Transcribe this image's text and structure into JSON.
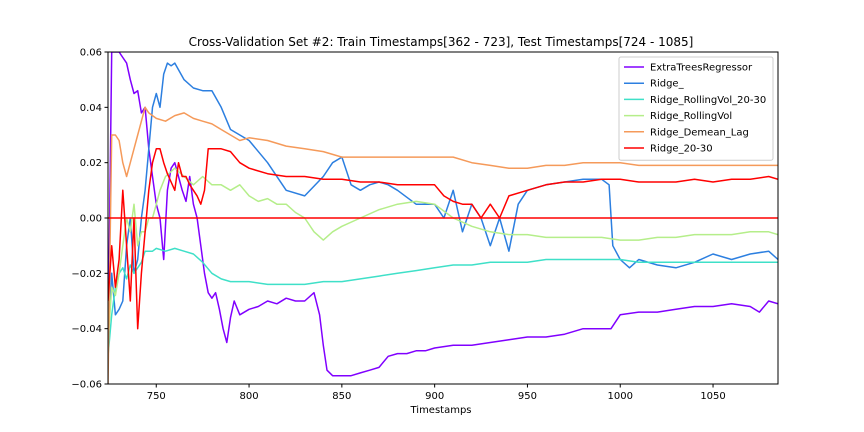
{
  "chart_data": {
    "type": "line",
    "title": "Cross-Validation Set #2: Train Timestamps[362 - 723], Test Timestamps[724 - 1085]",
    "xlabel": "Timestamps",
    "ylabel": "",
    "xlim": [
      724,
      1085
    ],
    "ylim": [
      -0.06,
      0.06
    ],
    "xticks": [
      750,
      800,
      850,
      900,
      950,
      1000,
      1050
    ],
    "yticks": [
      -0.06,
      -0.04,
      -0.02,
      0.0,
      0.02,
      0.04,
      0.06
    ],
    "ytick_labels": [
      "−0.06",
      "−0.04",
      "−0.02",
      "0.00",
      "0.02",
      "0.04",
      "0.06"
    ],
    "grid": false,
    "legend_position": "top-right",
    "hline": {
      "y": 0.0,
      "color": "#ff0000"
    },
    "series": [
      {
        "name": "ExtraTreesRegressor",
        "color": "#8000ff",
        "x": [
          724,
          726,
          728,
          730,
          732,
          734,
          736,
          738,
          740,
          742,
          744,
          746,
          748,
          750,
          752,
          754,
          756,
          758,
          760,
          762,
          764,
          766,
          768,
          770,
          772,
          774,
          776,
          778,
          780,
          782,
          784,
          786,
          788,
          790,
          792,
          795,
          800,
          805,
          810,
          815,
          820,
          825,
          830,
          835,
          838,
          840,
          842,
          845,
          850,
          855,
          860,
          865,
          870,
          875,
          880,
          885,
          890,
          895,
          900,
          910,
          920,
          930,
          940,
          950,
          960,
          970,
          980,
          990,
          995,
          1000,
          1010,
          1020,
          1030,
          1040,
          1050,
          1060,
          1070,
          1075,
          1080,
          1085
        ],
        "y": [
          -0.05,
          0.06,
          0.06,
          0.06,
          0.058,
          0.056,
          0.05,
          0.045,
          0.046,
          0.038,
          0.04,
          0.025,
          0.015,
          0.005,
          0.0,
          -0.015,
          0.01,
          0.018,
          0.02,
          0.015,
          0.01,
          0.006,
          0.015,
          0.005,
          0.0,
          -0.01,
          -0.02,
          -0.027,
          -0.029,
          -0.027,
          -0.033,
          -0.04,
          -0.045,
          -0.036,
          -0.03,
          -0.035,
          -0.033,
          -0.032,
          -0.03,
          -0.031,
          -0.029,
          -0.03,
          -0.03,
          -0.027,
          -0.035,
          -0.046,
          -0.055,
          -0.057,
          -0.057,
          -0.057,
          -0.056,
          -0.055,
          -0.054,
          -0.05,
          -0.049,
          -0.049,
          -0.048,
          -0.048,
          -0.047,
          -0.046,
          -0.046,
          -0.045,
          -0.044,
          -0.043,
          -0.043,
          -0.042,
          -0.04,
          -0.04,
          -0.04,
          -0.035,
          -0.034,
          -0.034,
          -0.033,
          -0.032,
          -0.032,
          -0.031,
          -0.032,
          -0.034,
          -0.03,
          -0.031
        ]
      },
      {
        "name": "Ridge_",
        "color": "#2c7fe0",
        "x": [
          724,
          726,
          728,
          730,
          732,
          734,
          736,
          738,
          740,
          742,
          744,
          746,
          748,
          750,
          752,
          754,
          756,
          758,
          760,
          765,
          770,
          775,
          780,
          785,
          790,
          795,
          800,
          810,
          820,
          830,
          840,
          845,
          850,
          855,
          860,
          865,
          870,
          875,
          880,
          890,
          900,
          905,
          910,
          915,
          920,
          925,
          930,
          935,
          940,
          945,
          950,
          960,
          970,
          980,
          990,
          994,
          996,
          1000,
          1005,
          1010,
          1020,
          1030,
          1040,
          1050,
          1060,
          1070,
          1080,
          1085
        ],
        "y": [
          -0.045,
          -0.02,
          -0.035,
          -0.033,
          -0.03,
          -0.01,
          0.0,
          -0.02,
          -0.015,
          0.0,
          0.01,
          0.025,
          0.04,
          0.045,
          0.04,
          0.052,
          0.056,
          0.055,
          0.056,
          0.05,
          0.047,
          0.046,
          0.046,
          0.04,
          0.032,
          0.03,
          0.028,
          0.02,
          0.01,
          0.008,
          0.015,
          0.02,
          0.022,
          0.012,
          0.01,
          0.012,
          0.013,
          0.012,
          0.01,
          0.005,
          0.005,
          0.0,
          0.01,
          -0.005,
          0.005,
          0.0,
          -0.01,
          0.0,
          -0.012,
          0.005,
          0.01,
          0.012,
          0.013,
          0.014,
          0.014,
          0.012,
          -0.01,
          -0.015,
          -0.018,
          -0.015,
          -0.017,
          -0.018,
          -0.016,
          -0.013,
          -0.015,
          -0.013,
          -0.012,
          -0.015
        ]
      },
      {
        "name": "Ridge_RollingVol_20-30",
        "color": "#3fe0c8",
        "x": [
          724,
          726,
          728,
          730,
          732,
          734,
          736,
          738,
          740,
          742,
          744,
          746,
          748,
          750,
          755,
          760,
          765,
          770,
          775,
          780,
          785,
          790,
          800,
          810,
          820,
          830,
          840,
          850,
          860,
          870,
          880,
          890,
          900,
          910,
          920,
          930,
          940,
          950,
          960,
          970,
          980,
          990,
          1000,
          1010,
          1020,
          1030,
          1040,
          1050,
          1060,
          1070,
          1080,
          1085
        ],
        "y": [
          -0.05,
          -0.035,
          -0.025,
          -0.02,
          -0.018,
          -0.022,
          -0.017,
          -0.02,
          -0.018,
          -0.016,
          -0.012,
          -0.012,
          -0.012,
          -0.011,
          -0.012,
          -0.011,
          -0.012,
          -0.013,
          -0.016,
          -0.02,
          -0.022,
          -0.023,
          -0.023,
          -0.024,
          -0.024,
          -0.024,
          -0.023,
          -0.023,
          -0.022,
          -0.021,
          -0.02,
          -0.019,
          -0.018,
          -0.017,
          -0.017,
          -0.016,
          -0.016,
          -0.016,
          -0.015,
          -0.015,
          -0.015,
          -0.015,
          -0.015,
          -0.016,
          -0.016,
          -0.016,
          -0.016,
          -0.016,
          -0.016,
          -0.016,
          -0.016,
          -0.016
        ]
      },
      {
        "name": "Ridge_RollingVol",
        "color": "#b5ee8a",
        "x": [
          724,
          726,
          728,
          730,
          732,
          734,
          736,
          738,
          740,
          742,
          744,
          746,
          748,
          750,
          752,
          755,
          760,
          765,
          770,
          775,
          780,
          785,
          790,
          795,
          800,
          805,
          810,
          815,
          820,
          825,
          830,
          835,
          840,
          845,
          850,
          860,
          870,
          880,
          890,
          900,
          910,
          920,
          930,
          940,
          950,
          960,
          970,
          980,
          990,
          1000,
          1010,
          1020,
          1030,
          1040,
          1050,
          1060,
          1070,
          1080,
          1085
        ],
        "y": [
          -0.045,
          -0.025,
          -0.028,
          -0.02,
          -0.01,
          0.0,
          -0.005,
          0.005,
          -0.01,
          -0.005,
          -0.005,
          0.0,
          0.0,
          0.005,
          0.01,
          0.015,
          0.018,
          0.015,
          0.012,
          0.015,
          0.012,
          0.012,
          0.01,
          0.012,
          0.008,
          0.006,
          0.007,
          0.005,
          0.005,
          0.002,
          0.0,
          -0.005,
          -0.008,
          -0.005,
          -0.003,
          0.0,
          0.003,
          0.005,
          0.006,
          0.005,
          0.0,
          -0.003,
          -0.005,
          -0.006,
          -0.006,
          -0.007,
          -0.007,
          -0.007,
          -0.007,
          -0.008,
          -0.008,
          -0.007,
          -0.007,
          -0.006,
          -0.006,
          -0.006,
          -0.005,
          -0.005,
          -0.006
        ]
      },
      {
        "name": "Ridge_Demean_Lag",
        "color": "#f59a5a",
        "x": [
          724,
          726,
          728,
          730,
          732,
          734,
          736,
          738,
          740,
          742,
          744,
          746,
          748,
          750,
          755,
          760,
          765,
          770,
          775,
          780,
          785,
          790,
          795,
          800,
          810,
          820,
          830,
          840,
          850,
          860,
          870,
          880,
          890,
          900,
          910,
          920,
          930,
          940,
          950,
          960,
          970,
          980,
          990,
          1000,
          1010,
          1020,
          1030,
          1040,
          1050,
          1060,
          1070,
          1080,
          1085
        ],
        "y": [
          -0.06,
          0.03,
          0.03,
          0.028,
          0.02,
          0.015,
          0.02,
          0.025,
          0.03,
          0.035,
          0.04,
          0.038,
          0.037,
          0.036,
          0.035,
          0.037,
          0.038,
          0.036,
          0.035,
          0.034,
          0.032,
          0.03,
          0.028,
          0.029,
          0.028,
          0.026,
          0.025,
          0.024,
          0.022,
          0.022,
          0.022,
          0.022,
          0.022,
          0.022,
          0.022,
          0.02,
          0.019,
          0.018,
          0.018,
          0.019,
          0.019,
          0.02,
          0.02,
          0.02,
          0.019,
          0.019,
          0.019,
          0.019,
          0.019,
          0.019,
          0.019,
          0.019,
          0.019
        ]
      },
      {
        "name": "Ridge_20-30",
        "color": "#ff0000",
        "x": [
          724,
          726,
          728,
          730,
          732,
          734,
          736,
          738,
          740,
          742,
          744,
          746,
          748,
          750,
          752,
          754,
          756,
          758,
          760,
          762,
          764,
          766,
          768,
          770,
          772,
          774,
          776,
          778,
          780,
          785,
          790,
          795,
          800,
          810,
          820,
          830,
          840,
          850,
          860,
          870,
          880,
          890,
          900,
          905,
          910,
          915,
          920,
          925,
          930,
          935,
          940,
          950,
          960,
          970,
          980,
          990,
          1000,
          1010,
          1020,
          1030,
          1040,
          1050,
          1060,
          1070,
          1080,
          1085
        ],
        "y": [
          -0.03,
          -0.01,
          -0.025,
          -0.015,
          0.01,
          -0.01,
          -0.03,
          0.0,
          -0.04,
          -0.02,
          -0.005,
          0.01,
          0.02,
          0.025,
          0.025,
          0.02,
          0.016,
          0.013,
          0.01,
          0.02,
          0.015,
          0.015,
          0.012,
          0.01,
          0.008,
          0.005,
          0.01,
          0.025,
          0.025,
          0.025,
          0.024,
          0.02,
          0.018,
          0.016,
          0.015,
          0.015,
          0.014,
          0.014,
          0.013,
          0.013,
          0.012,
          0.012,
          0.012,
          0.008,
          0.006,
          0.005,
          0.005,
          0.0,
          0.005,
          0.0,
          0.008,
          0.01,
          0.012,
          0.013,
          0.013,
          0.014,
          0.014,
          0.013,
          0.013,
          0.013,
          0.014,
          0.013,
          0.014,
          0.014,
          0.015,
          0.014
        ]
      }
    ]
  }
}
